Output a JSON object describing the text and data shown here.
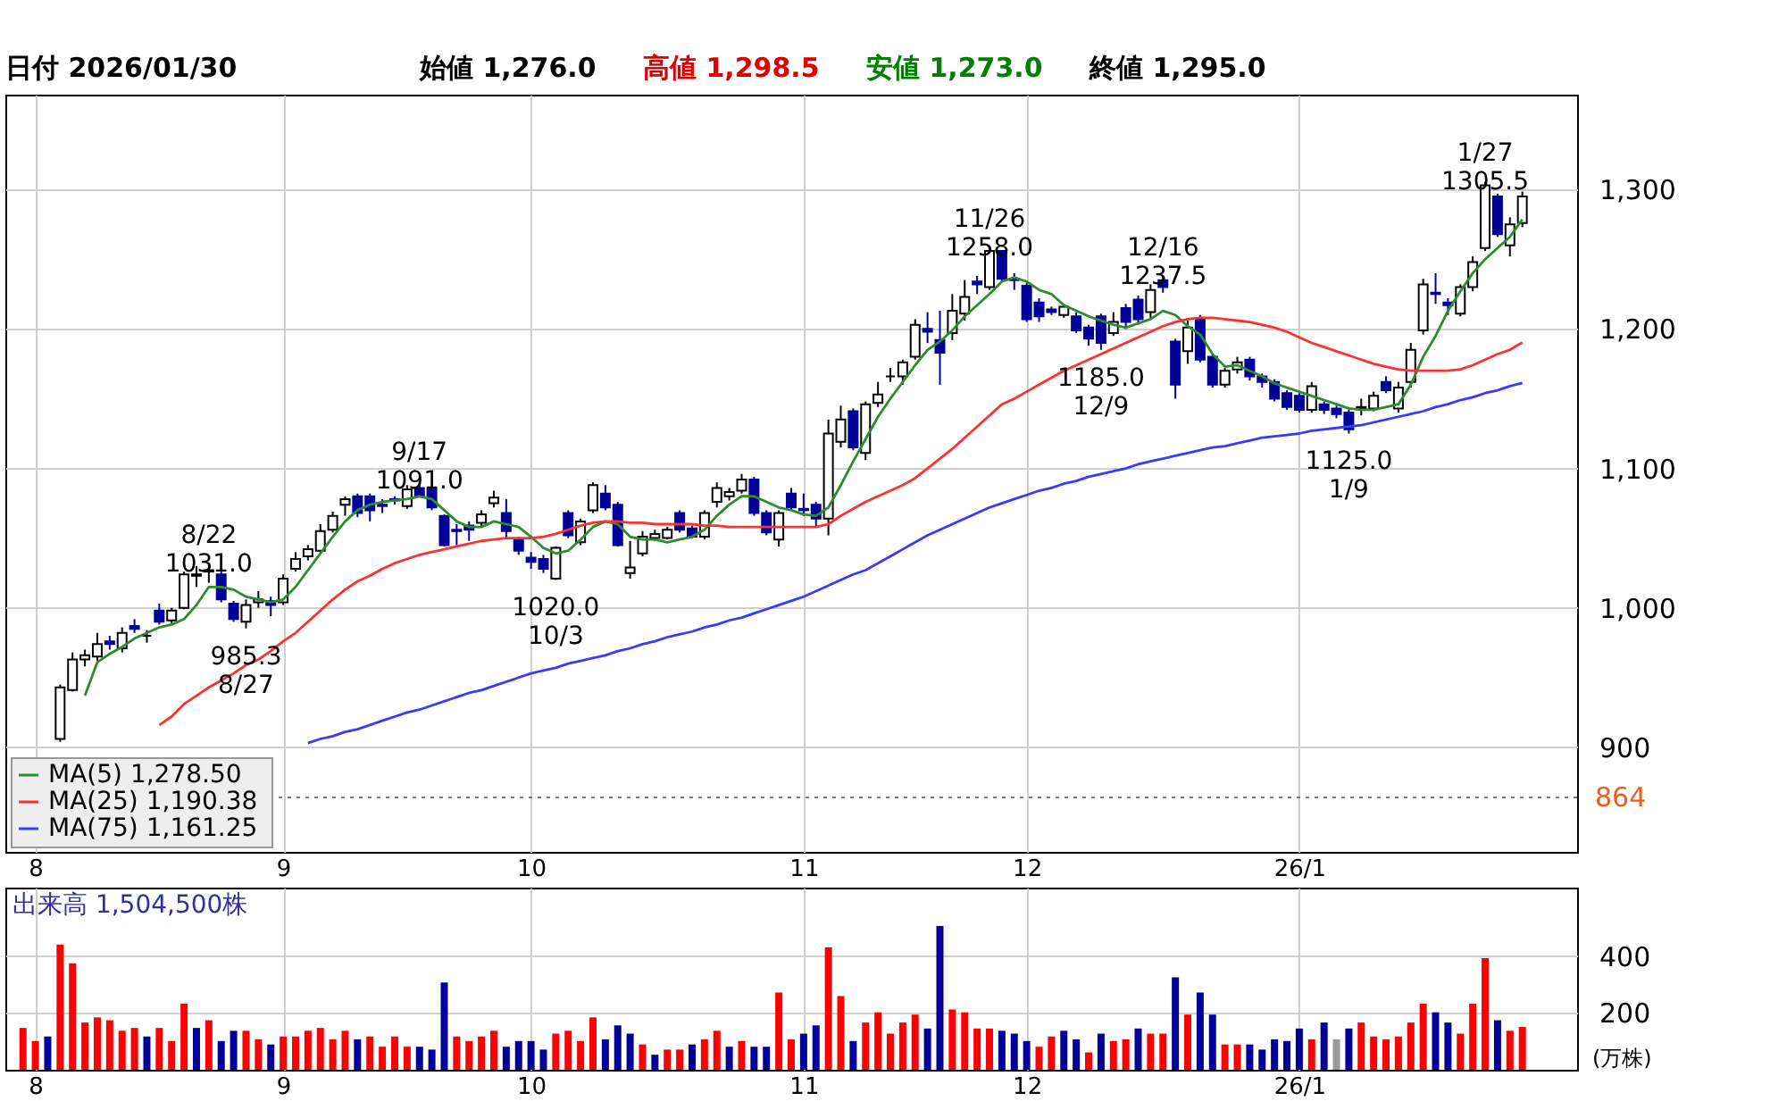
{
  "chart_data": [
    {
      "type": "candlestick",
      "title": "日付 2026/01/30",
      "legend": "bottom left",
      "grid": true,
      "annotations": [
        "始値 1,276.0",
        "高値 1,298.5",
        "安値 1,273.0",
        "終値 1,295.0",
        {
          "text": "8/22\n1031.0",
          "y": 1031.0
        },
        {
          "text": "985.3\n8/27",
          "y": 985.3
        },
        {
          "text": "9/17\n1091.0",
          "y": 1091.0
        },
        {
          "text": "1020.0\n10/3",
          "y": 1020.0
        },
        {
          "text": "11/26\n1258.0",
          "y": 1258.0
        },
        {
          "text": "1185.0\n12/9",
          "y": 1185.0
        },
        {
          "text": "12/16\n1237.5",
          "y": 1237.5
        },
        {
          "text": "1125.0\n1/9",
          "y": 1125.0
        },
        {
          "text": "1/27\n1305.5",
          "y": 1305.5
        }
      ],
      "categories": [
        null,
        "8",
        null,
        null,
        null,
        null,
        null,
        null,
        null,
        null,
        null,
        null,
        null,
        null,
        null,
        null,
        null,
        null,
        null,
        null,
        null,
        "9",
        null,
        null,
        null,
        null,
        null,
        null,
        null,
        null,
        null,
        null,
        null,
        null,
        null,
        null,
        null,
        null,
        null,
        null,
        null,
        "10",
        null,
        null,
        null,
        null,
        null,
        null,
        null,
        null,
        null,
        null,
        null,
        null,
        null,
        null,
        null,
        null,
        null,
        null,
        null,
        null,
        null,
        "11",
        null,
        null,
        null,
        null,
        null,
        null,
        null,
        null,
        null,
        null,
        null,
        null,
        null,
        null,
        null,
        null,
        null,
        "12",
        null,
        null,
        null,
        null,
        null,
        null,
        null,
        null,
        null,
        null,
        null,
        null,
        null,
        null,
        null,
        null,
        null,
        null,
        null,
        null,
        null,
        "26/1",
        null,
        null,
        null,
        null,
        null,
        null,
        null,
        null,
        null,
        null,
        null,
        null,
        null,
        null,
        null,
        null,
        null,
        null
      ],
      "ohlc": [
        null,
        null,
        null,
        [
          906,
          945,
          904,
          943
        ],
        [
          941,
          968,
          940,
          963
        ],
        [
          963,
          970,
          958,
          966
        ],
        [
          965,
          982,
          962,
          974
        ],
        [
          976,
          980,
          970,
          974
        ],
        [
          971,
          986,
          968,
          982
        ],
        [
          987,
          992,
          982,
          985
        ],
        [
          980,
          984,
          975,
          980
        ],
        [
          998,
          1003,
          988,
          990
        ],
        [
          991,
          1000,
          989,
          998
        ],
        [
          1000,
          1026,
          999,
          1024
        ],
        [
          1023,
          1030,
          1015,
          1024
        ],
        [
          1026,
          1031.0,
          1018,
          1027
        ],
        [
          1024,
          1026,
          1004,
          1006
        ],
        [
          1003,
          1005,
          990,
          992
        ],
        [
          990,
          1006,
          985.3,
          1002
        ],
        [
          1004,
          1012,
          1000,
          1006
        ],
        [
          1005,
          1008,
          994,
          1002
        ],
        [
          1004,
          1024,
          1002,
          1021
        ],
        [
          1028,
          1040,
          1026,
          1035
        ],
        [
          1037,
          1045,
          1034,
          1042
        ],
        [
          1041,
          1060,
          1040,
          1055
        ],
        [
          1056,
          1069,
          1054,
          1066
        ],
        [
          1074,
          1080,
          1066,
          1078
        ],
        [
          1080,
          1082,
          1065,
          1068
        ],
        [
          1080,
          1082,
          1062,
          1070
        ],
        [
          1074,
          1078,
          1068,
          1073
        ],
        [
          1078,
          1080,
          1074,
          1077
        ],
        [
          1073,
          1088,
          1071,
          1085
        ],
        [
          1086,
          1091.0,
          1080,
          1080
        ],
        [
          1085,
          1087,
          1070,
          1072
        ],
        [
          1066,
          1067,
          1044,
          1045
        ],
        [
          1056,
          1060,
          1045,
          1055
        ],
        [
          1059,
          1062,
          1048,
          1056
        ],
        [
          1061,
          1070,
          1058,
          1067
        ],
        [
          1075,
          1084,
          1072,
          1079
        ],
        [
          1068,
          1078,
          1050,
          1055
        ],
        [
          1049,
          1051,
          1038,
          1041
        ],
        [
          1036,
          1040,
          1028,
          1033
        ],
        [
          1035,
          1038,
          1025,
          1028
        ],
        [
          1021,
          1044,
          1020.0,
          1043
        ],
        [
          1068,
          1070,
          1050,
          1052
        ],
        [
          1047,
          1064,
          1045,
          1062
        ],
        [
          1070,
          1090,
          1068,
          1088
        ],
        [
          1082,
          1088,
          1070,
          1072
        ],
        [
          1074,
          1076,
          1044,
          1045
        ],
        [
          1025,
          1048,
          1021,
          1029
        ],
        [
          1039,
          1055,
          1037,
          1051
        ],
        [
          1050,
          1056,
          1048,
          1053
        ],
        [
          1050,
          1058,
          1049,
          1056
        ],
        [
          1068,
          1070,
          1054,
          1056
        ],
        [
          1057,
          1059,
          1050,
          1051
        ],
        [
          1051,
          1070,
          1049,
          1068
        ],
        [
          1076,
          1090,
          1072,
          1086
        ],
        [
          1080,
          1086,
          1077,
          1083
        ],
        [
          1084,
          1096,
          1082,
          1092
        ],
        [
          1092,
          1094,
          1066,
          1068
        ],
        [
          1068,
          1070,
          1052,
          1054
        ],
        [
          1049,
          1070,
          1044,
          1068
        ],
        [
          1082,
          1086,
          1070,
          1072
        ],
        [
          1071,
          1082,
          1066,
          1070
        ],
        [
          1074,
          1076,
          1058,
          1064
        ],
        [
          1064,
          1135,
          1052,
          1125
        ],
        [
          1119,
          1145,
          1115,
          1135
        ],
        [
          1141,
          1143,
          1113,
          1115
        ],
        [
          1111,
          1148,
          1106,
          1146
        ],
        [
          1147,
          1162,
          1144,
          1153
        ],
        [
          1166,
          1172,
          1162,
          1166
        ],
        [
          1166,
          1178,
          1160,
          1176
        ],
        [
          1180,
          1207,
          1178,
          1203
        ],
        [
          1200,
          1212,
          1190,
          1198
        ],
        [
          1192,
          1213,
          1160,
          1183
        ],
        [
          1197,
          1225,
          1192,
          1213
        ],
        [
          1211,
          1235,
          1206,
          1223
        ],
        [
          1234,
          1238,
          1225,
          1232
        ],
        [
          1230,
          1258.0,
          1228,
          1256
        ],
        [
          1256,
          1256,
          1234,
          1236
        ],
        [
          1236,
          1240,
          1228,
          1235
        ],
        [
          1231,
          1233,
          1205,
          1207
        ],
        [
          1219,
          1222,
          1205,
          1209
        ],
        [
          1214,
          1216,
          1210,
          1212
        ],
        [
          1210,
          1218,
          1208,
          1216
        ],
        [
          1209,
          1212,
          1197,
          1199
        ],
        [
          1201,
          1203,
          1188,
          1193
        ],
        [
          1209,
          1211,
          1185.0,
          1190
        ],
        [
          1197,
          1212,
          1195,
          1205
        ],
        [
          1215,
          1218,
          1200,
          1205
        ],
        [
          1221,
          1224,
          1203,
          1207
        ],
        [
          1212,
          1232,
          1208,
          1228
        ],
        [
          1235,
          1237.5,
          1226,
          1230
        ],
        [
          1191,
          1193,
          1150,
          1160
        ],
        [
          1184,
          1206,
          1175,
          1201
        ],
        [
          1207,
          1210,
          1176,
          1178
        ],
        [
          1180,
          1182,
          1158,
          1160
        ],
        [
          1160,
          1172,
          1158,
          1170
        ],
        [
          1171,
          1180,
          1168,
          1176
        ],
        [
          1178,
          1180,
          1163,
          1166
        ],
        [
          1166,
          1168,
          1158,
          1162
        ],
        [
          1162,
          1164,
          1148,
          1150
        ],
        [
          1154,
          1156,
          1142,
          1144
        ],
        [
          1152,
          1154,
          1140,
          1142
        ],
        [
          1142,
          1162,
          1140,
          1159
        ],
        [
          1146,
          1148,
          1139,
          1142
        ],
        [
          1143,
          1145,
          1136,
          1139
        ],
        [
          1140,
          1142,
          1125.0,
          1128
        ],
        [
          1143,
          1150,
          1138,
          1144
        ],
        [
          1143,
          1155,
          1141,
          1152
        ],
        [
          1162,
          1166,
          1154,
          1156
        ],
        [
          1143,
          1162,
          1140,
          1158
        ],
        [
          1162,
          1190,
          1158,
          1185
        ],
        [
          1199,
          1236,
          1196,
          1232
        ],
        [
          1226,
          1240,
          1218,
          1225
        ],
        [
          1219,
          1222,
          1210,
          1217
        ],
        [
          1211,
          1232,
          1209,
          1230
        ],
        [
          1230,
          1252,
          1227,
          1248
        ],
        [
          1258,
          1305.5,
          1256,
          1303
        ],
        [
          1295,
          1297,
          1266,
          1268
        ],
        [
          1260,
          1280,
          1252,
          1275
        ],
        [
          1276,
          1298.5,
          1273,
          1295
        ]
      ],
      "series": [
        {
          "name": "MA(5)   1,278.50",
          "type": "line",
          "color": "#2e8b2e",
          "values": [
            null,
            null,
            null,
            null,
            null,
            937,
            961,
            967,
            972,
            978,
            982,
            986,
            988,
            992,
            1002,
            1015,
            1015,
            1013,
            1008,
            1006,
            1004,
            1006,
            1015,
            1027,
            1039,
            1051,
            1062,
            1070,
            1074,
            1076,
            1077,
            1078,
            1080,
            1078,
            1070,
            1062,
            1058,
            1058,
            1062,
            1060,
            1058,
            1051,
            1043,
            1039,
            1041,
            1049,
            1058,
            1062,
            1060,
            1051,
            1049,
            1049,
            1047,
            1049,
            1051,
            1056,
            1066,
            1074,
            1080,
            1080,
            1076,
            1072,
            1070,
            1067,
            1066,
            1072,
            1088,
            1105,
            1121,
            1137,
            1150,
            1162,
            1174,
            1185,
            1191,
            1199,
            1209,
            1217,
            1225,
            1234,
            1237,
            1234,
            1228,
            1225,
            1217,
            1213,
            1209,
            1206,
            1203,
            1201,
            1204,
            1207,
            1213,
            1210,
            1202,
            1196,
            1182,
            1173,
            1174,
            1170,
            1166,
            1161,
            1158,
            1155,
            1152,
            1149,
            1146,
            1143,
            1142,
            1142,
            1144,
            1146,
            1160,
            1180,
            1195,
            1213,
            1227,
            1240,
            1250,
            1258,
            1266,
            1278.5
          ]
        },
        {
          "name": "MA(25)  1,190.38",
          "type": "line",
          "color": "#ff3030",
          "values": [
            null,
            null,
            null,
            null,
            null,
            null,
            null,
            null,
            null,
            null,
            null,
            916,
            922,
            931,
            937,
            943,
            948,
            953,
            959,
            963,
            969,
            976,
            982,
            990,
            998,
            1006,
            1013,
            1019,
            1023,
            1028,
            1032,
            1035,
            1038,
            1040,
            1042,
            1044,
            1046,
            1048,
            1049,
            1050,
            1050,
            1050,
            1051,
            1053,
            1056,
            1059,
            1061,
            1062,
            1062,
            1061,
            1061,
            1060,
            1060,
            1060,
            1060,
            1059,
            1059,
            1058,
            1058,
            1058,
            1058,
            1058,
            1058,
            1058,
            1058,
            1060,
            1066,
            1071,
            1076,
            1080,
            1084,
            1088,
            1093,
            1100,
            1107,
            1114,
            1122,
            1130,
            1138,
            1146,
            1150,
            1155,
            1160,
            1165,
            1170,
            1174,
            1178,
            1182,
            1186,
            1190,
            1194,
            1198,
            1202,
            1205,
            1207,
            1208,
            1208,
            1207,
            1206,
            1205,
            1203,
            1201,
            1198,
            1194,
            1190,
            1187,
            1184,
            1181,
            1178,
            1175,
            1173,
            1171,
            1170,
            1170,
            1170,
            1170,
            1171,
            1174,
            1178,
            1182,
            1185,
            1190.38
          ]
        },
        {
          "name": "MA(75)  1,161.25",
          "type": "line",
          "color": "#3a3aff",
          "values": [
            null,
            null,
            null,
            null,
            null,
            null,
            null,
            null,
            null,
            null,
            null,
            null,
            null,
            null,
            null,
            null,
            null,
            null,
            null,
            null,
            null,
            null,
            null,
            903,
            906,
            908,
            911,
            913,
            916,
            919,
            922,
            925,
            927,
            930,
            933,
            936,
            939,
            941,
            944,
            947,
            950,
            953,
            955,
            957,
            960,
            962,
            964,
            966,
            969,
            971,
            974,
            976,
            979,
            981,
            983,
            986,
            988,
            991,
            993,
            996,
            999,
            1002,
            1005,
            1008,
            1012,
            1016,
            1020,
            1024,
            1027,
            1032,
            1037,
            1042,
            1047,
            1052,
            1056,
            1060,
            1064,
            1068,
            1072,
            1075,
            1078,
            1081,
            1084,
            1086,
            1089,
            1091,
            1094,
            1096,
            1098,
            1100,
            1103,
            1105,
            1107,
            1109,
            1111,
            1113,
            1115,
            1116,
            1118,
            1120,
            1122,
            1123,
            1124,
            1125,
            1127,
            1128,
            1129,
            1130,
            1131,
            1133,
            1135,
            1137,
            1139,
            1141,
            1144,
            1146,
            1149,
            1151,
            1154,
            1156,
            1159,
            1161.25
          ]
        }
      ],
      "ylim": [
        825,
        1368
      ],
      "yticks": [
        900,
        {
          "value": 1000,
          "label": "1,000"
        },
        {
          "value": 1100,
          "label": "1,100"
        },
        {
          "value": 1200,
          "label": "1,200"
        },
        {
          "value": 1300,
          "label": "1,300"
        }
      ],
      "ref_lines": [
        {
          "axis": "y",
          "value": 864,
          "label": "864",
          "line_style": "dotted"
        }
      ]
    },
    {
      "type": "bar",
      "title": "出来高  1,504,500株",
      "ylabel": "(万株)",
      "grid": true,
      "categories": [
        null,
        "8",
        null,
        null,
        null,
        null,
        null,
        null,
        null,
        null,
        null,
        null,
        null,
        null,
        null,
        null,
        null,
        null,
        null,
        null,
        null,
        "9",
        null,
        null,
        null,
        null,
        null,
        null,
        null,
        null,
        null,
        null,
        null,
        null,
        null,
        null,
        null,
        null,
        null,
        null,
        null,
        "10",
        null,
        null,
        null,
        null,
        null,
        null,
        null,
        null,
        null,
        null,
        null,
        null,
        null,
        null,
        null,
        null,
        null,
        null,
        null,
        null,
        null,
        "11",
        null,
        null,
        null,
        null,
        null,
        null,
        null,
        null,
        null,
        null,
        null,
        null,
        null,
        null,
        null,
        null,
        null,
        "12",
        null,
        null,
        null,
        null,
        null,
        null,
        null,
        null,
        null,
        null,
        null,
        null,
        null,
        null,
        null,
        null,
        null,
        null,
        null,
        null,
        null,
        "26/1",
        null,
        null,
        null,
        null,
        null,
        null,
        null,
        null,
        null,
        null,
        null,
        null,
        null,
        null,
        null,
        null,
        null,
        null
      ],
      "values": [
        147,
        101,
        117,
        440,
        374,
        166,
        184,
        174,
        137,
        147,
        117,
        147,
        101,
        232,
        147,
        174,
        101,
        137,
        137,
        107,
        89,
        117,
        117,
        137,
        147,
        107,
        137,
        107,
        117,
        81,
        117,
        81,
        81,
        71,
        307,
        117,
        101,
        117,
        137,
        81,
        101,
        101,
        71,
        127,
        137,
        101,
        184,
        107,
        156,
        127,
        89,
        53,
        71,
        71,
        89,
        107,
        137,
        81,
        101,
        81,
        81,
        271,
        107,
        127,
        156,
        430,
        259,
        101,
        166,
        202,
        127,
        166,
        194,
        145,
        505,
        212,
        202,
        145,
        145,
        137,
        127,
        101,
        81,
        117,
        137,
        107,
        61,
        127,
        101,
        107,
        145,
        127,
        127,
        325,
        194,
        271,
        194,
        89,
        89,
        89,
        71,
        107,
        101,
        145,
        107,
        166,
        107,
        145,
        166,
        117,
        107,
        117,
        166,
        232,
        202,
        166,
        127,
        232,
        392,
        174,
        137,
        150.45
      ],
      "colors": [
        "#ff0000",
        "#ff0000",
        "#000099",
        "#ff0000",
        "#ff0000",
        "#ff0000",
        "#ff0000",
        "#ff0000",
        "#ff0000",
        "#ff0000",
        "#000099",
        "#ff0000",
        "#ff0000",
        "#ff0000",
        "#000099",
        "#ff0000",
        "#000099",
        "#000099",
        "#ff0000",
        "#ff0000",
        "#000099",
        "#ff0000",
        "#ff0000",
        "#ff0000",
        "#ff0000",
        "#ff0000",
        "#ff0000",
        "#000099",
        "#ff0000",
        "#ff0000",
        "#ff0000",
        "#ff0000",
        "#000099",
        "#000099",
        "#000099",
        "#ff0000",
        "#ff0000",
        "#ff0000",
        "#ff0000",
        "#000099",
        "#000099",
        "#000099",
        "#000099",
        "#ff0000",
        "#ff0000",
        "#ff0000",
        "#ff0000",
        "#000099",
        "#000099",
        "#000099",
        "#ff0000",
        "#000099",
        "#ff0000",
        "#ff0000",
        "#000099",
        "#ff0000",
        "#ff0000",
        "#000099",
        "#ff0000",
        "#000099",
        "#000099",
        "#ff0000",
        "#ff0000",
        "#000099",
        "#000099",
        "#ff0000",
        "#ff0000",
        "#000099",
        "#ff0000",
        "#ff0000",
        "#ff0000",
        "#ff0000",
        "#ff0000",
        "#000099",
        "#000099",
        "#ff0000",
        "#ff0000",
        "#ff0000",
        "#ff0000",
        "#000099",
        "#000099",
        "#000099",
        "#ff0000",
        "#ff0000",
        "#000099",
        "#000099",
        "#ff0000",
        "#000099",
        "#ff0000",
        "#ff0000",
        "#000099",
        "#ff0000",
        "#ff0000",
        "#000099",
        "#ff0000",
        "#000099",
        "#000099",
        "#ff0000",
        "#ff0000",
        "#000099",
        "#000099",
        "#000099",
        "#000099",
        "#000099",
        "#ff0000",
        "#000099",
        "#999999",
        "#000099",
        "#ff0000",
        "#ff0000",
        "#ff0000",
        "#ff0000",
        "#ff0000",
        "#ff0000",
        "#000099",
        "#000099",
        "#ff0000",
        "#ff0000",
        "#ff0000",
        "#000099",
        "#ff0000",
        "#ff0000"
      ],
      "ylim": [
        0,
        640
      ],
      "yticks": [
        200,
        400
      ]
    }
  ]
}
